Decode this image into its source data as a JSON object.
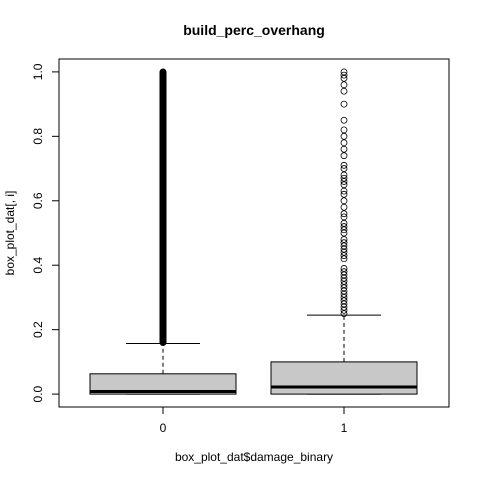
{
  "chart_data": {
    "type": "box",
    "title": "build_perc_overhang",
    "xlabel": "box_plot_dat$damage_binary",
    "ylabel": "box_plot_dat[, i]",
    "ylim": [
      -0.04,
      1.04
    ],
    "y_ticks": [
      0.0,
      0.2,
      0.4,
      0.6,
      0.8,
      1.0
    ],
    "y_tick_labels": [
      "0.0",
      "0.2",
      "0.4",
      "0.6",
      "0.8",
      "1.0"
    ],
    "categories": [
      "0",
      "1"
    ],
    "groups": [
      {
        "category": "0",
        "min": 0.0,
        "q1": 0.0,
        "median": 0.008,
        "q3": 0.063,
        "whisker_high": 0.157,
        "outlier_range": [
          0.16,
          1.0
        ],
        "outliers_dense": true
      },
      {
        "category": "1",
        "min": 0.0,
        "q1": 0.0,
        "median": 0.022,
        "q3": 0.1,
        "whisker_high": 0.245,
        "outliers": [
          0.25,
          0.26,
          0.27,
          0.28,
          0.29,
          0.3,
          0.31,
          0.32,
          0.33,
          0.34,
          0.35,
          0.36,
          0.37,
          0.38,
          0.39,
          0.42,
          0.43,
          0.44,
          0.45,
          0.46,
          0.47,
          0.48,
          0.5,
          0.51,
          0.52,
          0.53,
          0.55,
          0.56,
          0.58,
          0.6,
          0.62,
          0.63,
          0.65,
          0.66,
          0.67,
          0.68,
          0.7,
          0.71,
          0.74,
          0.76,
          0.78,
          0.8,
          0.82,
          0.85,
          0.9,
          0.94,
          0.96,
          0.98,
          0.99,
          1.0
        ]
      }
    ],
    "box_fill": "#c8c8c8",
    "grid": false
  }
}
